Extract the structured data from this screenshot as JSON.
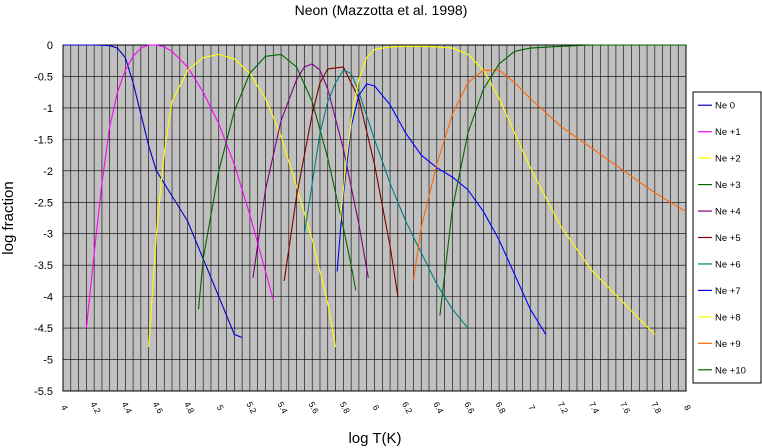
{
  "chart_data": {
    "type": "line",
    "title": "Neon (Mazzotta et al. 1998)",
    "xlabel": "log T(K)",
    "ylabel": "log fraction",
    "xlim": [
      4,
      8
    ],
    "ylim": [
      -5.5,
      0
    ],
    "grid": true,
    "legend_position": "right",
    "x_tick_labels": [
      "4",
      "4.2",
      "4.4",
      "4.6",
      "4.8",
      "5",
      "5.2",
      "5.4",
      "5.6",
      "5.8",
      "6",
      "6.2",
      "6.4",
      "6.6",
      "6.8",
      "7",
      "7.2",
      "7.4",
      "7.6",
      "7.8",
      "8"
    ],
    "y_tick_labels": [
      "0",
      "-0.5",
      "-1",
      "-1.5",
      "-2",
      "-2.5",
      "-3",
      "-3.5",
      "-4",
      "-4.5",
      "-5",
      "-5.5"
    ],
    "series": [
      {
        "name": "Ne 0",
        "color": "#0000cc",
        "x": [
          4.0,
          4.1,
          4.2,
          4.3,
          4.35,
          4.4,
          4.45,
          4.5,
          4.55,
          4.6,
          4.7,
          4.8,
          4.9,
          5.0,
          5.1,
          5.15
        ],
        "y": [
          0,
          0,
          0,
          -0.01,
          -0.05,
          -0.2,
          -0.6,
          -1.1,
          -1.6,
          -2.0,
          -2.4,
          -2.8,
          -3.4,
          -4.0,
          -4.6,
          -4.65
        ]
      },
      {
        "name": "Ne +1",
        "color": "#ff00ff",
        "x": [
          4.15,
          4.2,
          4.25,
          4.3,
          4.35,
          4.4,
          4.45,
          4.5,
          4.55,
          4.6,
          4.65,
          4.7,
          4.8,
          4.9,
          5.0,
          5.1,
          5.2,
          5.3,
          5.35
        ],
        "y": [
          -4.5,
          -3.3,
          -2.2,
          -1.3,
          -0.75,
          -0.4,
          -0.18,
          -0.05,
          0,
          0,
          -0.03,
          -0.1,
          -0.35,
          -0.75,
          -1.25,
          -1.9,
          -2.7,
          -3.6,
          -4.05
        ]
      },
      {
        "name": "Ne +2",
        "color": "#ffff00",
        "x": [
          4.55,
          4.6,
          4.65,
          4.7,
          4.8,
          4.9,
          5.0,
          5.1,
          5.2,
          5.3,
          5.4,
          5.5,
          5.6,
          5.7,
          5.75
        ],
        "y": [
          -4.8,
          -3.0,
          -1.7,
          -0.9,
          -0.4,
          -0.2,
          -0.15,
          -0.22,
          -0.45,
          -0.85,
          -1.45,
          -2.25,
          -3.1,
          -4.1,
          -4.8
        ]
      },
      {
        "name": "Ne +3",
        "color": "#006600",
        "x": [
          4.87,
          4.9,
          5.0,
          5.1,
          5.2,
          5.3,
          5.4,
          5.5,
          5.6,
          5.7,
          5.8,
          5.85,
          5.88
        ],
        "y": [
          -4.2,
          -3.4,
          -2.0,
          -1.05,
          -0.45,
          -0.18,
          -0.15,
          -0.35,
          -0.9,
          -1.8,
          -2.9,
          -3.5,
          -3.9
        ]
      },
      {
        "name": "Ne +4",
        "color": "#800080",
        "x": [
          5.22,
          5.3,
          5.4,
          5.5,
          5.55,
          5.6,
          5.65,
          5.7,
          5.8,
          5.9,
          5.96
        ],
        "y": [
          -3.7,
          -2.3,
          -1.2,
          -0.55,
          -0.35,
          -0.3,
          -0.4,
          -0.7,
          -1.65,
          -2.85,
          -3.7
        ]
      },
      {
        "name": "Ne +5",
        "color": "#800000",
        "x": [
          5.42,
          5.5,
          5.6,
          5.65,
          5.7,
          5.8,
          5.9,
          6.0,
          6.1,
          6.15
        ],
        "y": [
          -3.75,
          -2.4,
          -1.1,
          -0.6,
          -0.38,
          -0.35,
          -0.85,
          -1.9,
          -3.2,
          -4.0
        ]
      },
      {
        "name": "Ne +6",
        "color": "#008080",
        "x": [
          5.55,
          5.6,
          5.65,
          5.7,
          5.75,
          5.8,
          5.85,
          5.9,
          6.0,
          6.1,
          6.2,
          6.3,
          6.4,
          6.5,
          6.6
        ],
        "y": [
          -3.0,
          -2.2,
          -1.4,
          -0.9,
          -0.6,
          -0.4,
          -0.45,
          -0.75,
          -1.5,
          -2.2,
          -2.8,
          -3.3,
          -3.8,
          -4.2,
          -4.5
        ]
      },
      {
        "name": "Ne +7",
        "color": "#0000ff",
        "x": [
          5.76,
          5.8,
          5.85,
          5.9,
          5.95,
          6.0,
          6.1,
          6.2,
          6.3,
          6.4,
          6.5,
          6.6,
          6.7,
          6.8,
          6.9,
          7.0,
          7.1
        ],
        "y": [
          -3.6,
          -2.4,
          -1.3,
          -0.8,
          -0.62,
          -0.65,
          -0.95,
          -1.4,
          -1.75,
          -1.95,
          -2.1,
          -2.3,
          -2.65,
          -3.1,
          -3.65,
          -4.2,
          -4.6
        ]
      },
      {
        "name": "Ne +8",
        "color": "#ffff00",
        "x": [
          5.78,
          5.82,
          5.86,
          5.9,
          5.95,
          6.0,
          6.1,
          6.2,
          6.3,
          6.4,
          6.5,
          6.6,
          6.7,
          6.8,
          6.9,
          7.0,
          7.2,
          7.4,
          7.6,
          7.7,
          7.8
        ],
        "y": [
          -2.8,
          -1.8,
          -1.05,
          -0.55,
          -0.2,
          -0.07,
          -0.03,
          -0.02,
          -0.02,
          -0.03,
          -0.05,
          -0.15,
          -0.4,
          -0.85,
          -1.4,
          -1.95,
          -2.9,
          -3.6,
          -4.1,
          -4.35,
          -4.6
        ]
      },
      {
        "name": "Ne +9",
        "color": "#ff6600",
        "x": [
          6.25,
          6.3,
          6.4,
          6.5,
          6.6,
          6.7,
          6.8,
          6.9,
          7.0,
          7.2,
          7.4,
          7.6,
          7.8,
          8.0
        ],
        "y": [
          -3.75,
          -2.9,
          -1.9,
          -1.1,
          -0.6,
          -0.4,
          -0.4,
          -0.6,
          -0.85,
          -1.3,
          -1.65,
          -2.0,
          -2.35,
          -2.65
        ]
      },
      {
        "name": "Ne +10",
        "color": "#006600",
        "x": [
          6.42,
          6.5,
          6.6,
          6.7,
          6.8,
          6.9,
          7.0,
          7.2,
          7.4,
          7.6,
          7.8,
          8.0
        ],
        "y": [
          -4.3,
          -2.6,
          -1.4,
          -0.7,
          -0.3,
          -0.1,
          -0.05,
          -0.02,
          0,
          0,
          0,
          0
        ]
      }
    ]
  }
}
